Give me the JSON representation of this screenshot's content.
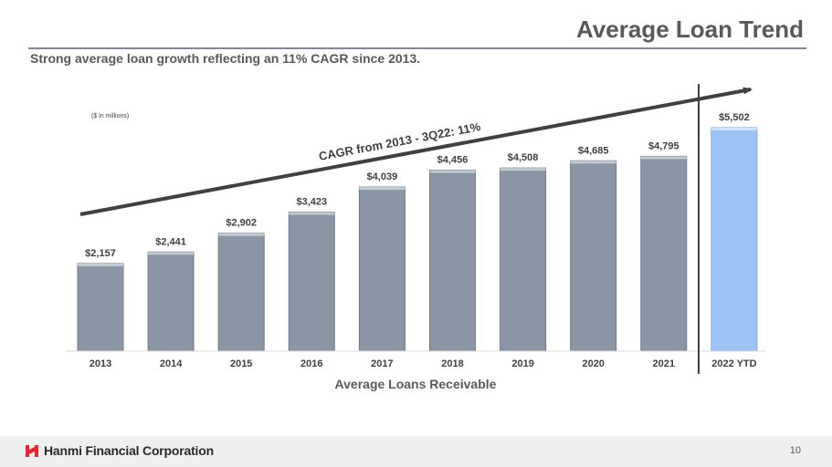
{
  "header": {
    "title": "Average Loan Trend",
    "subtitle": "Strong average loan growth reflecting an 11% CAGR since 2013."
  },
  "chart_data": {
    "type": "bar",
    "unit_note": "($ in millions)",
    "categories": [
      "2013",
      "2014",
      "2015",
      "2016",
      "2017",
      "2018",
      "2019",
      "2020",
      "2021",
      "2022 YTD"
    ],
    "values": [
      2157,
      2441,
      2902,
      3423,
      4039,
      4456,
      4508,
      4685,
      4795,
      5502
    ],
    "value_labels": [
      "$2,157",
      "$2,441",
      "$2,902",
      "$3,423",
      "$4,039",
      "$4,456",
      "$4,508",
      "$4,685",
      "$4,795",
      "$5,502"
    ],
    "xlabel": "Average Loans Receivable",
    "ylabel": "",
    "annotation": "CAGR from 2013 - 3Q22: 11%",
    "highlighted_category": "2022 YTD",
    "colors": {
      "bar": "#8a96a3",
      "highlight_bar": "#9dc3f5",
      "arrow": "#404040",
      "labels": "#404040"
    },
    "grid": false
  },
  "footer": {
    "company": "Hanmi Financial Corporation",
    "logo_icon": "hanmi-logo-icon",
    "page_number": "10",
    "brand_color": "#e8262f"
  }
}
